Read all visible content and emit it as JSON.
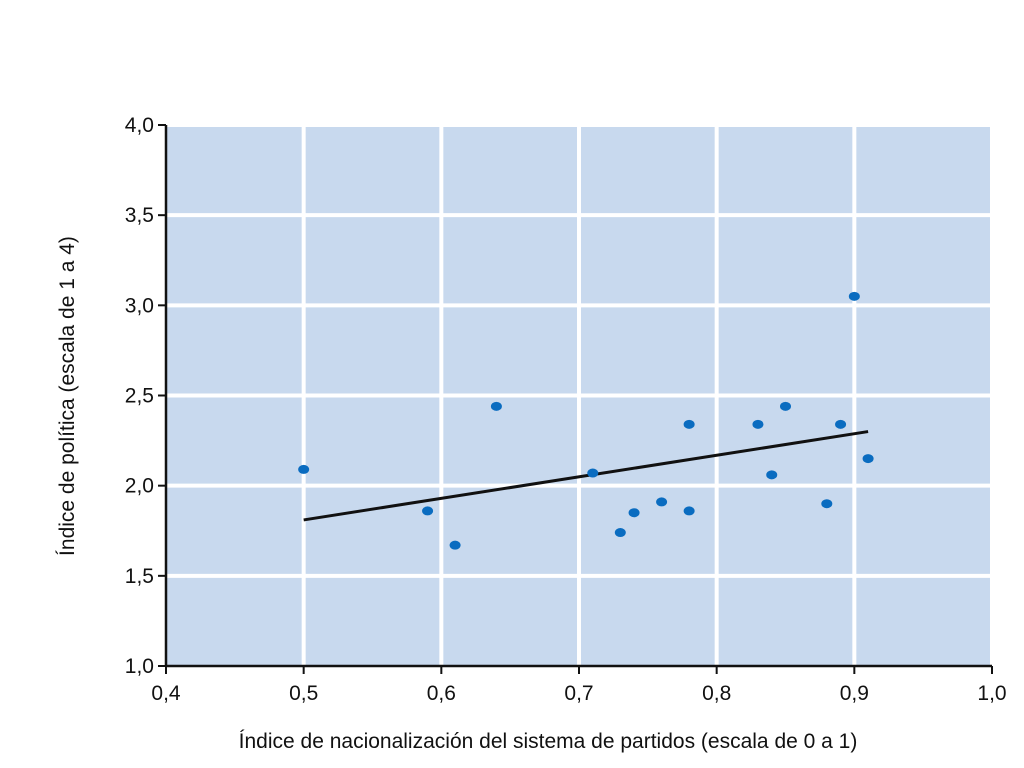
{
  "chart_data": {
    "type": "scatter",
    "xlabel": "Índice de nacionalización del sistema de partidos (escala de 0 a 1)",
    "ylabel": "Índice de política (escala de 1 a 4)",
    "xlim": [
      0.4,
      1.0
    ],
    "ylim": [
      1.0,
      4.0
    ],
    "x_ticks": [
      0.4,
      0.5,
      0.6,
      0.7,
      0.8,
      0.9,
      1.0
    ],
    "y_ticks": [
      1.0,
      1.5,
      2.0,
      2.5,
      3.0,
      3.5,
      4.0
    ],
    "x_tick_labels": [
      "0,4",
      "0,5",
      "0,6",
      "0,7",
      "0,8",
      "0,9",
      "1,0"
    ],
    "y_tick_labels": [
      "1,0",
      "1,5",
      "2,0",
      "2,5",
      "3,0",
      "3,5",
      "4,0"
    ],
    "grid": true,
    "colors": {
      "plot_background": "#c8d9ee",
      "grid": "#ffffff",
      "points": "#0a6cc0",
      "trend_line": "#111111",
      "axis": "#111111"
    },
    "points": [
      {
        "x": 0.5,
        "y": 2.09
      },
      {
        "x": 0.59,
        "y": 1.86
      },
      {
        "x": 0.61,
        "y": 1.67
      },
      {
        "x": 0.64,
        "y": 2.44
      },
      {
        "x": 0.71,
        "y": 2.07
      },
      {
        "x": 0.73,
        "y": 1.74
      },
      {
        "x": 0.74,
        "y": 1.85
      },
      {
        "x": 0.76,
        "y": 1.91
      },
      {
        "x": 0.78,
        "y": 2.34
      },
      {
        "x": 0.78,
        "y": 1.86
      },
      {
        "x": 0.83,
        "y": 2.34
      },
      {
        "x": 0.84,
        "y": 2.06
      },
      {
        "x": 0.85,
        "y": 2.44
      },
      {
        "x": 0.88,
        "y": 1.9
      },
      {
        "x": 0.89,
        "y": 2.34
      },
      {
        "x": 0.9,
        "y": 3.05
      },
      {
        "x": 0.91,
        "y": 2.15
      }
    ],
    "trend_line": {
      "x": [
        0.5,
        0.91
      ],
      "y": [
        1.81,
        2.3
      ]
    }
  }
}
